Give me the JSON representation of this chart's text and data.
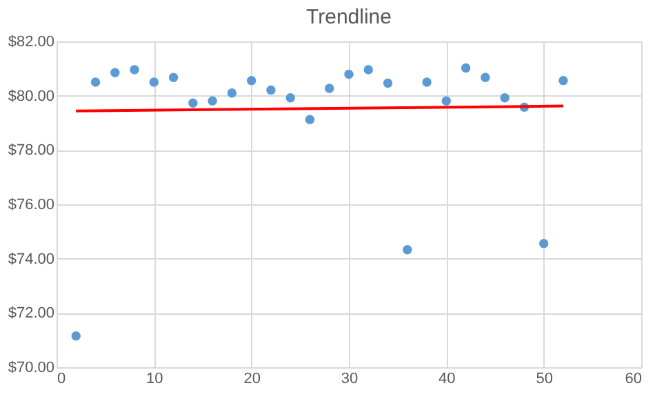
{
  "chart_data": {
    "type": "scatter",
    "title": "Trendline",
    "series": [
      {
        "marker": "circle",
        "color": "#5b9bd5",
        "x": [
          2,
          4,
          6,
          8,
          10,
          12,
          14,
          16,
          18,
          20,
          22,
          24,
          26,
          28,
          30,
          32,
          34,
          36,
          38,
          40,
          42,
          44,
          46,
          48,
          50,
          52
        ],
        "values": [
          71.15,
          80.5,
          80.85,
          80.96,
          80.5,
          80.67,
          79.73,
          79.81,
          80.1,
          80.56,
          80.21,
          79.92,
          79.12,
          80.27,
          80.79,
          80.96,
          80.46,
          74.33,
          80.5,
          79.81,
          81.02,
          80.67,
          79.92,
          79.58,
          74.56,
          80.56
        ]
      },
      {
        "type": "line",
        "color": "#ff0000",
        "x": [
          2,
          52
        ],
        "values": [
          79.44,
          79.62
        ]
      }
    ],
    "xlim": [
      0,
      60
    ],
    "xticks": [
      0,
      10,
      20,
      30,
      40,
      50,
      60
    ],
    "ylim": [
      70,
      82
    ],
    "yticks": [
      {
        "value": 70,
        "label": "$70.00"
      },
      {
        "value": 72,
        "label": "$72.00"
      },
      {
        "value": 74,
        "label": "$74.00"
      },
      {
        "value": 76,
        "label": "$76.00"
      },
      {
        "value": 78,
        "label": "$78.00"
      },
      {
        "value": 80,
        "label": "$80.00"
      },
      {
        "value": 82,
        "label": "$82.00"
      }
    ],
    "grid": true
  }
}
